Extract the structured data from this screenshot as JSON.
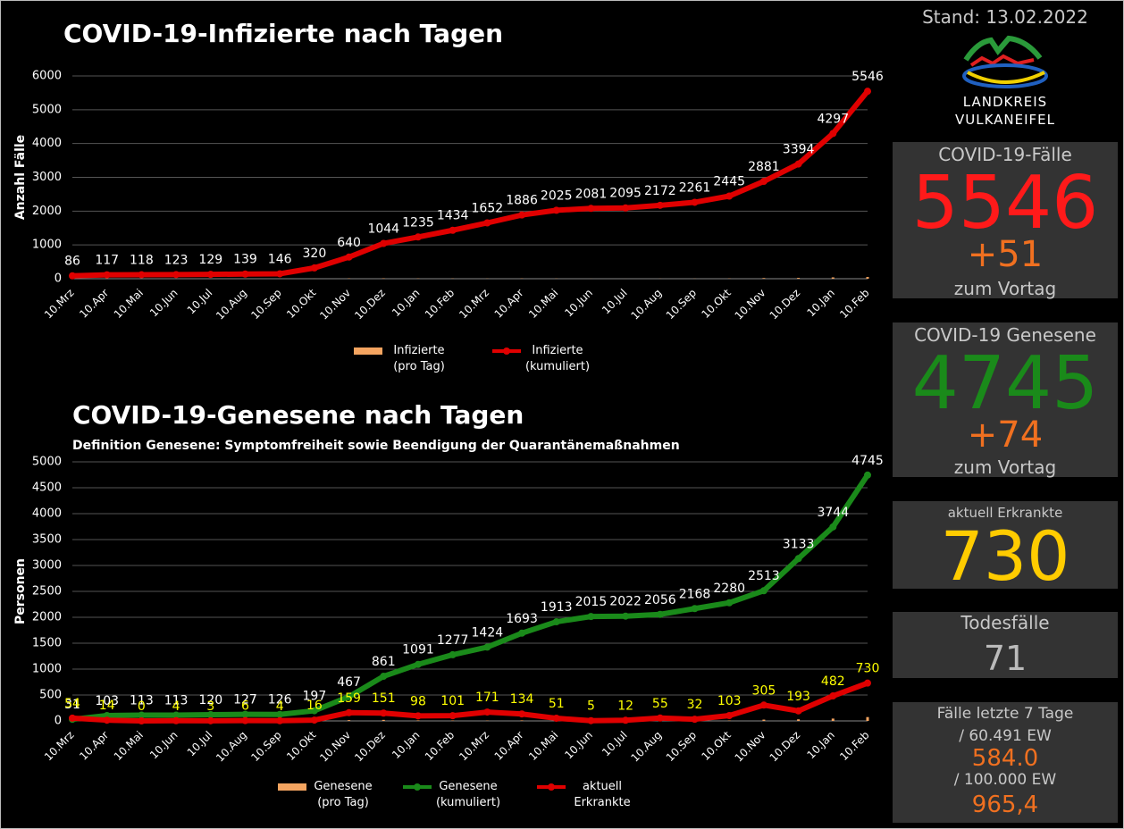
{
  "chart_data": [
    {
      "type": "line",
      "title": "COVID-19-Infizierte nach Tagen",
      "ylabel": "Anzahl Fälle",
      "categories": [
        "10.Mrz",
        "10.Apr",
        "10.Mai",
        "10.Jun",
        "10.Jul",
        "10.Aug",
        "10.Sep",
        "10.Okt",
        "10.Nov",
        "10.Dez",
        "10.Jan",
        "10.Feb",
        "10.Mrz",
        "10.Apr",
        "10.Mai",
        "10.Jun",
        "10.Jul",
        "10.Aug",
        "10.Sep",
        "10.Okt",
        "10.Nov",
        "10.Dez",
        "10.Jan",
        "10.Feb"
      ],
      "ylim": [
        0,
        6000
      ],
      "yticks": [
        0,
        1000,
        2000,
        3000,
        4000,
        5000,
        6000
      ],
      "grid": true,
      "series": [
        {
          "name": "Infizierte (pro Tag)",
          "kind": "bar",
          "color": "#f4a460",
          "values": [
            0,
            5,
            1,
            0,
            1,
            1,
            1,
            3,
            10,
            12,
            8,
            7,
            5,
            8,
            6,
            2,
            1,
            3,
            4,
            8,
            20,
            25,
            40,
            51
          ]
        },
        {
          "name": "Infizierte (kumuliert)",
          "kind": "line",
          "color": "#e00000",
          "label_color": "#ffffff",
          "values": [
            86,
            117,
            118,
            123,
            129,
            139,
            146,
            320,
            640,
            1044,
            1235,
            1434,
            1652,
            1886,
            2025,
            2081,
            2095,
            2172,
            2261,
            2445,
            2881,
            3394,
            4297,
            5546
          ]
        }
      ]
    },
    {
      "type": "line",
      "title": "COVID-19-Genesene nach Tagen",
      "subtitle": "Definition Genesene: Symptomfreiheit sowie Beendigung der Quarantänemaßnahmen",
      "ylabel": "Personen",
      "categories": [
        "10.Mrz",
        "10.Apr",
        "10.Mai",
        "10.Jun",
        "10.Jul",
        "10.Aug",
        "10.Sep",
        "10.Okt",
        "10.Nov",
        "10.Dez",
        "10.Jan",
        "10.Feb",
        "10.Mrz",
        "10.Apr",
        "10.Mai",
        "10.Jun",
        "10.Jul",
        "10.Aug",
        "10.Sep",
        "10.Okt",
        "10.Nov",
        "10.Dez",
        "10.Jan",
        "10.Feb"
      ],
      "ylim": [
        0,
        5000
      ],
      "yticks": [
        0,
        500,
        1000,
        1500,
        2000,
        2500,
        3000,
        3500,
        4000,
        4500,
        5000
      ],
      "grid": true,
      "series": [
        {
          "name": "Genesene (pro Tag)",
          "kind": "bar",
          "color": "#f4a460",
          "values": [
            0,
            3,
            2,
            0,
            1,
            1,
            1,
            5,
            15,
            20,
            10,
            8,
            6,
            10,
            8,
            2,
            1,
            3,
            5,
            8,
            25,
            30,
            45,
            74
          ]
        },
        {
          "name": "Genesene (kumuliert)",
          "kind": "line",
          "color": "#1a8a1a",
          "label_color": "#ffffff",
          "values": [
            31,
            103,
            113,
            113,
            120,
            127,
            126,
            197,
            467,
            861,
            1091,
            1277,
            1424,
            1693,
            1913,
            2015,
            2022,
            2056,
            2168,
            2280,
            2513,
            3133,
            3744,
            4745
          ]
        },
        {
          "name": "aktuell Erkrankte",
          "kind": "line",
          "color": "#e00000",
          "label_color": "#ffff00",
          "values": [
            54,
            14,
            0,
            4,
            3,
            6,
            4,
            16,
            159,
            151,
            98,
            101,
            171,
            134,
            51,
            5,
            12,
            55,
            32,
            103,
            305,
            193,
            482,
            730
          ]
        }
      ]
    }
  ],
  "panel": {
    "stand": "Stand: 13.02.2022",
    "logo": [
      "LANDKREIS",
      "VULKANEIFEL"
    ],
    "faelle": {
      "title": "COVID-19-Fälle",
      "value": "5546",
      "delta": "+51",
      "note": "zum Vortag"
    },
    "genesene": {
      "title": "COVID-19 Genesene",
      "value": "4745",
      "delta": "+74",
      "note": "zum Vortag"
    },
    "erkrankte": {
      "title": "aktuell Erkrankte",
      "value": "730"
    },
    "tode": {
      "title": "Todesfälle",
      "value": "71"
    },
    "inzidenz": {
      "title": "Fälle letzte 7 Tage",
      "ew1": "/  60.491 EW",
      "v1": "584.0",
      "ew2": "/ 100.000 EW",
      "v2": "965,4"
    }
  }
}
